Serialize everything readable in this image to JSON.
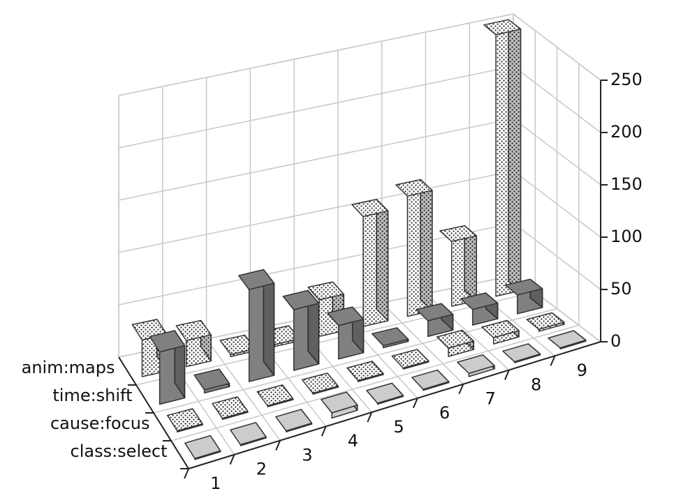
{
  "chart_data": {
    "type": "bar3d",
    "categories": [
      "1",
      "2",
      "3",
      "4",
      "5",
      "6",
      "7",
      "8",
      "9"
    ],
    "series": [
      {
        "name": "class:select",
        "color": "#cccccc",
        "pattern": "solid",
        "values": [
          1,
          1,
          1,
          5,
          1,
          1,
          3,
          1,
          1
        ]
      },
      {
        "name": "cause:focus",
        "color": "#ffffff",
        "pattern": "dots",
        "values": [
          1,
          1,
          1,
          1,
          1,
          1,
          8,
          6,
          2
        ]
      },
      {
        "name": "time:shift",
        "color": "#808080",
        "pattern": "solid",
        "values": [
          50,
          3,
          88,
          58,
          32,
          2,
          15,
          15,
          18
        ]
      },
      {
        "name": "anim:maps",
        "color": "#ffffff",
        "pattern": "dots",
        "values": [
          35,
          25,
          2,
          2,
          35,
          105,
          115,
          62,
          250
        ]
      }
    ],
    "ylim": [
      0,
      250
    ],
    "yticks": [
      0,
      50,
      100,
      150,
      200,
      250
    ],
    "grid": true
  }
}
